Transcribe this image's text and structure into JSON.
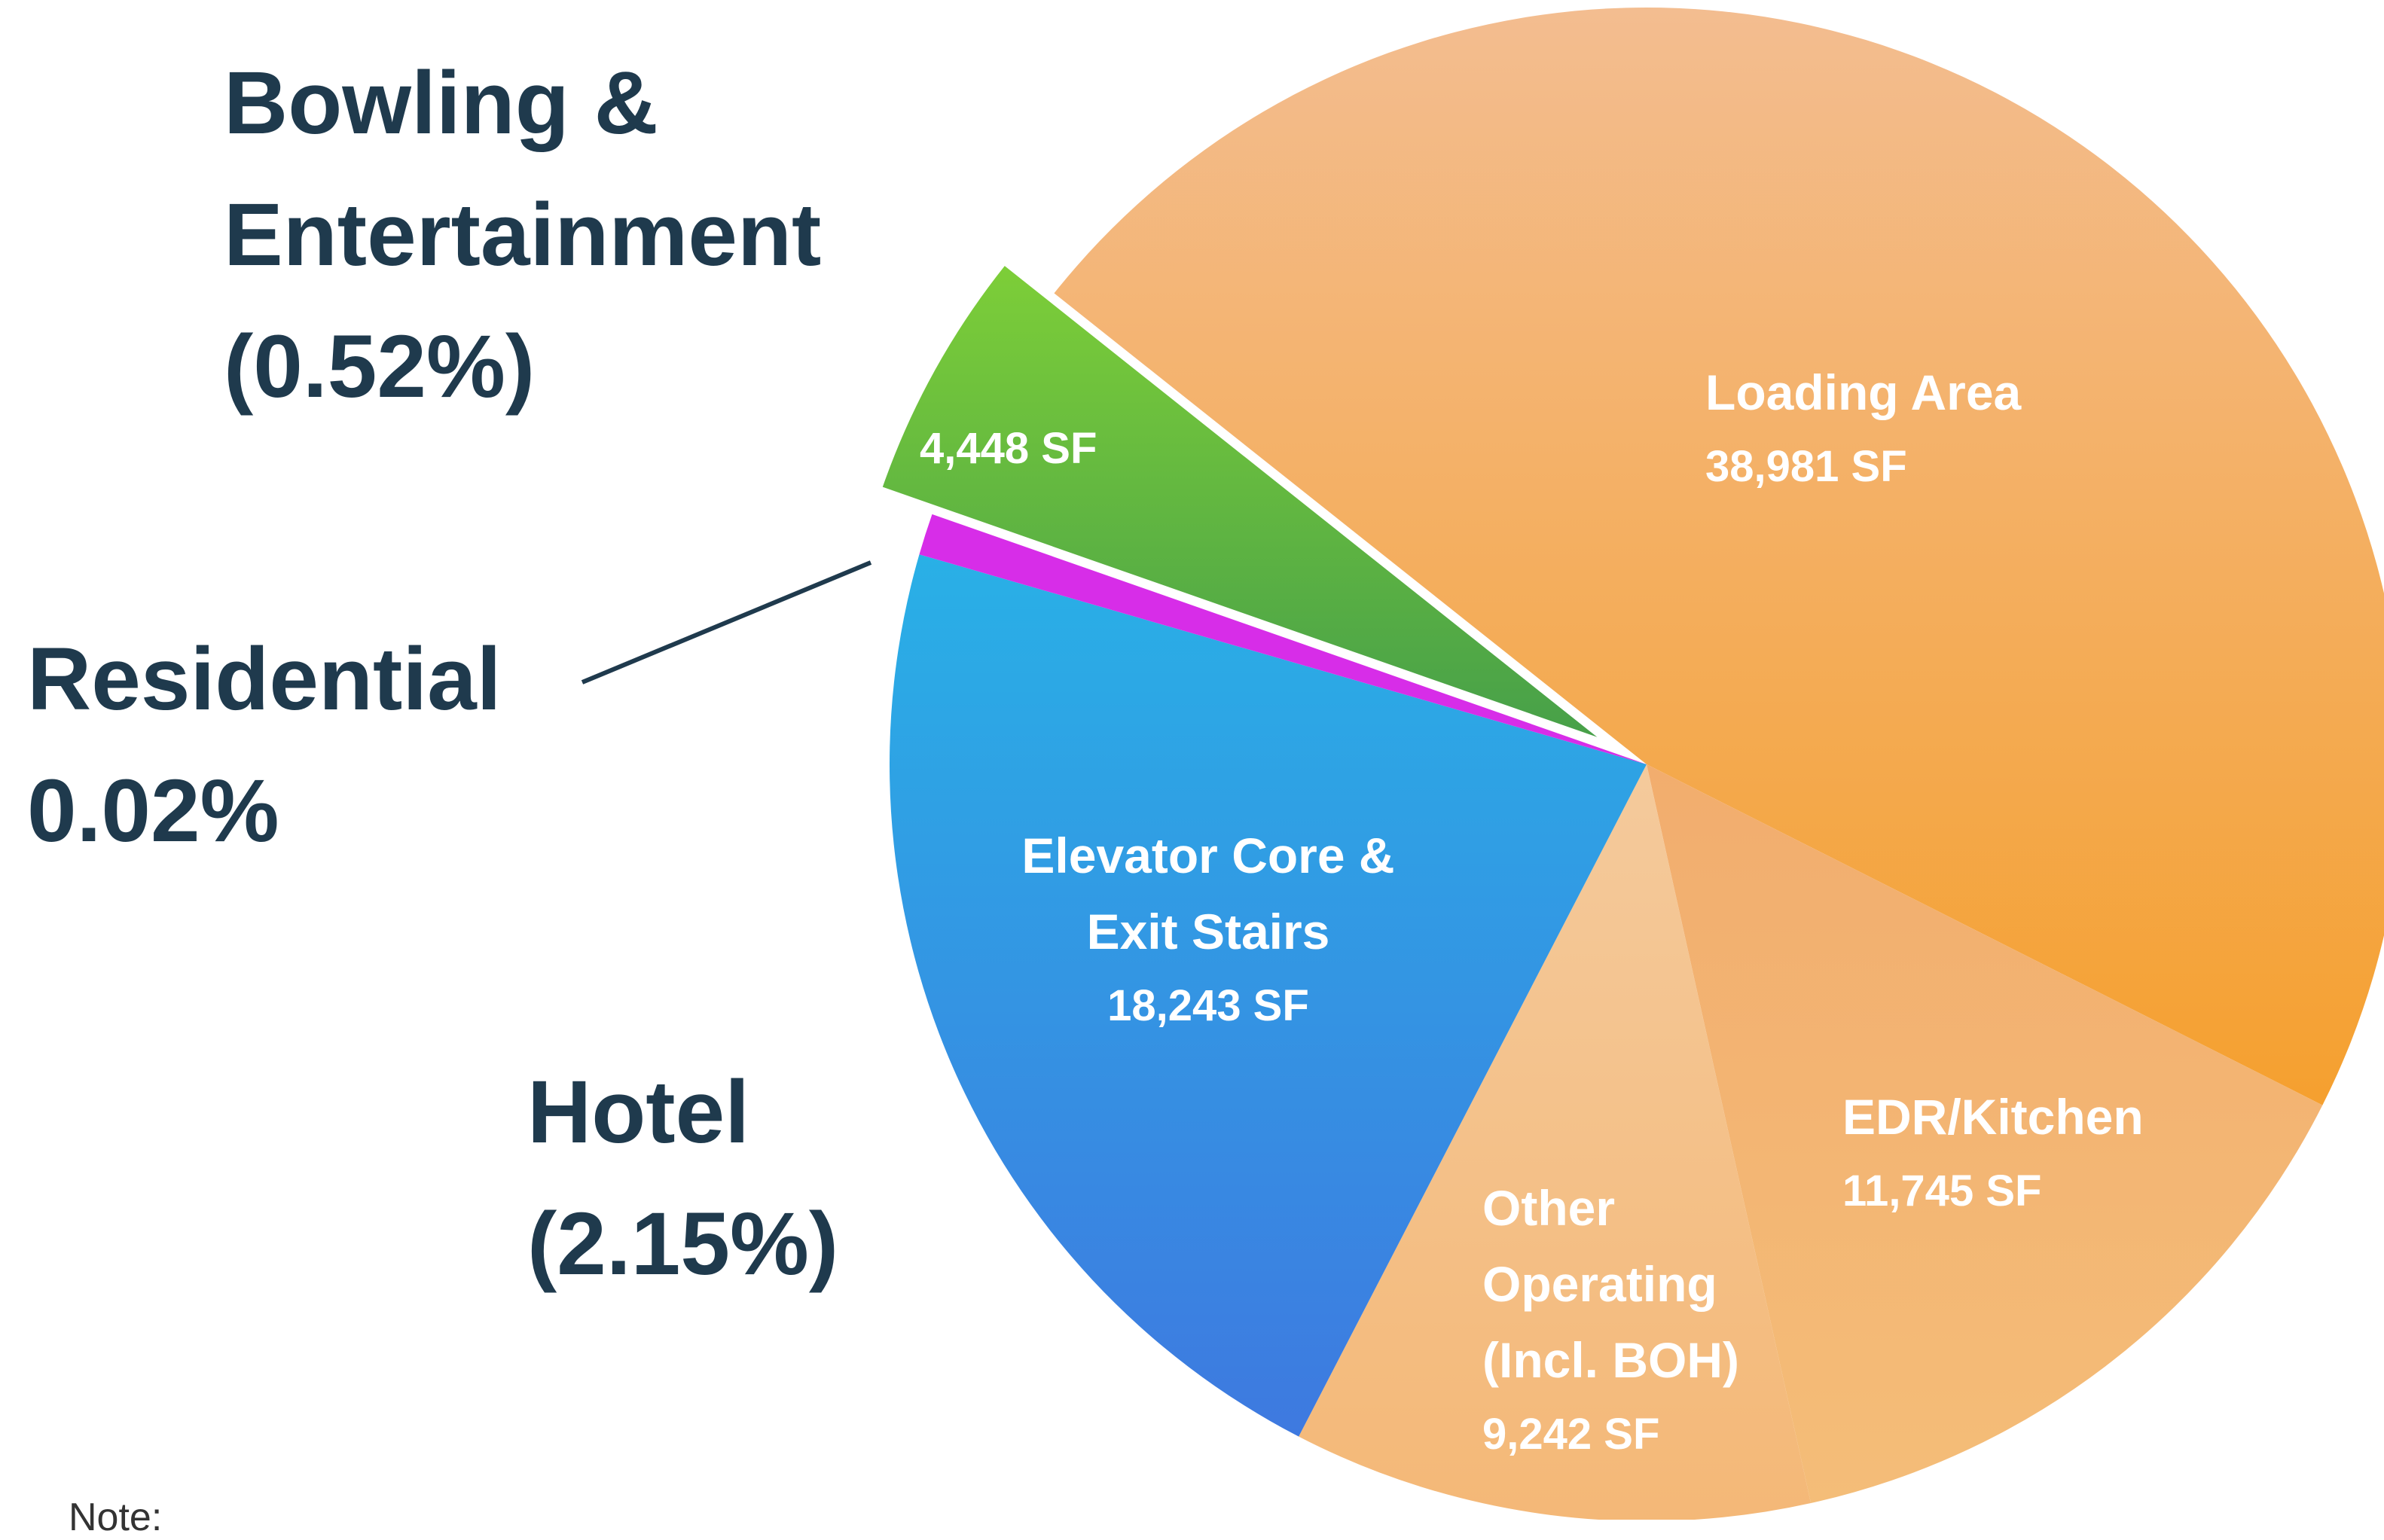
{
  "chart_data": {
    "type": "pie",
    "categories": [
      "Loading Area",
      "EDR/Kitchen",
      "Other Operating (Incl. BOH)",
      "Elevator Core & Exit Stairs",
      null,
      null
    ],
    "values": [
      38981,
      11745,
      9242,
      18243,
      740,
      4448
    ],
    "value_labels": [
      "38,981 SF",
      "11,745 SF",
      "9,242 SF",
      "18,243 SF",
      null,
      "4,448 SF"
    ],
    "colors": [
      [
        "#f3bd90",
        "#f5a02f"
      ],
      [
        "#f2ad6e",
        "#f4bd78"
      ],
      [
        "#f4ca9c",
        "#f4b877"
      ],
      [
        "#29b0e6",
        "#3e79e0"
      ],
      [
        "#d72de8",
        "#d72de8"
      ],
      [
        "#7dce38",
        "#47a049"
      ]
    ],
    "annotations": [
      {
        "lines": [
          "Bowling &",
          "Entertainment",
          "(0.52%)"
        ]
      },
      {
        "lines": [
          "Residential",
          "0.02%"
        ]
      },
      {
        "lines": [
          "Hotel",
          "(2.15%)"
        ]
      }
    ],
    "note": "Note:"
  }
}
